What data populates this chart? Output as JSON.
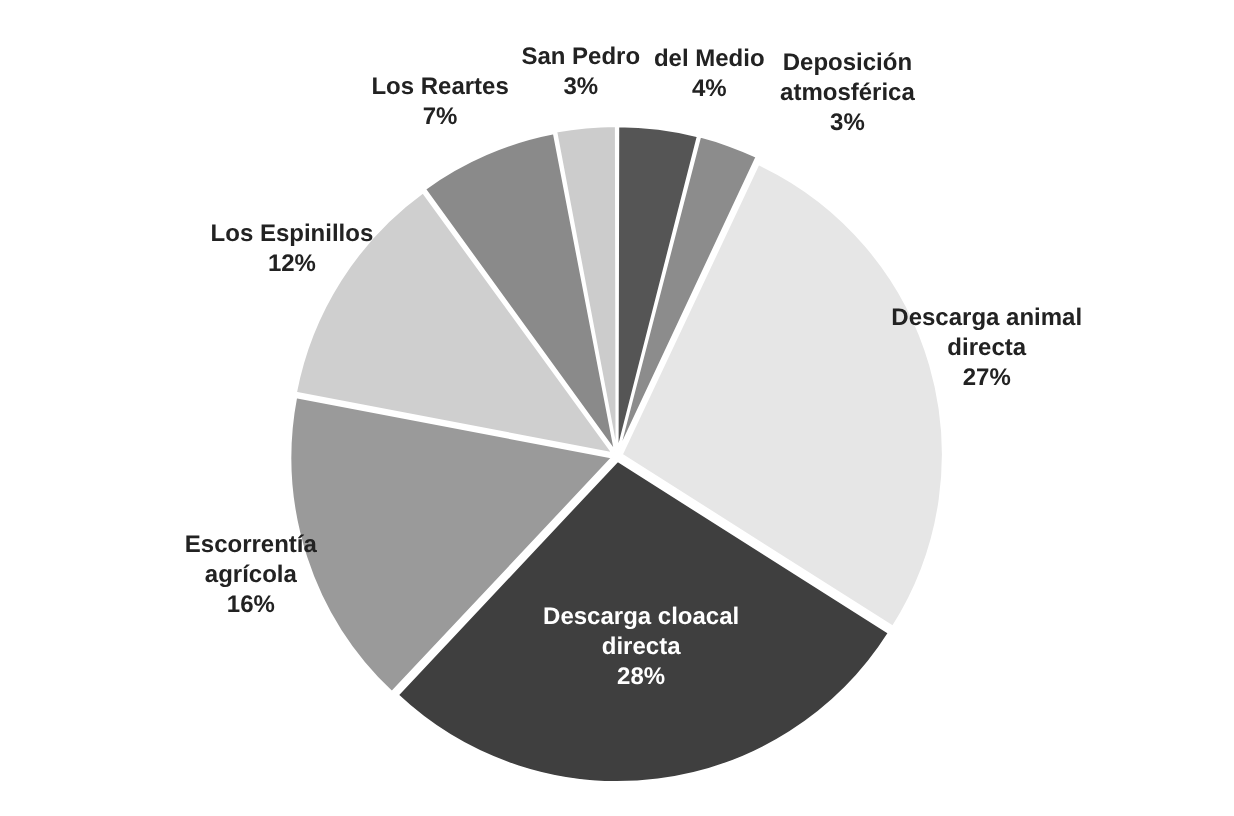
{
  "chart_data": {
    "type": "pie",
    "categories": [
      "del Medio",
      "Deposición atmosférica",
      "Descarga animal directa",
      "Descarga cloacal directa",
      "Escorrentía agrícola",
      "Los Espinillos",
      "Los Reartes",
      "San Pedro"
    ],
    "values": [
      4,
      3,
      27,
      28,
      16,
      12,
      7,
      3
    ],
    "value_labels": [
      "4%",
      "3%",
      "27%",
      "28%",
      "16%",
      "12%",
      "7%",
      "3%"
    ],
    "colors": [
      "#555555",
      "#8c8c8c",
      "#e6e6e6",
      "#3f3f3f",
      "#9a9a9a",
      "#cfcfcf",
      "#8a8a8a",
      "#cccccc"
    ],
    "legend": false
  }
}
